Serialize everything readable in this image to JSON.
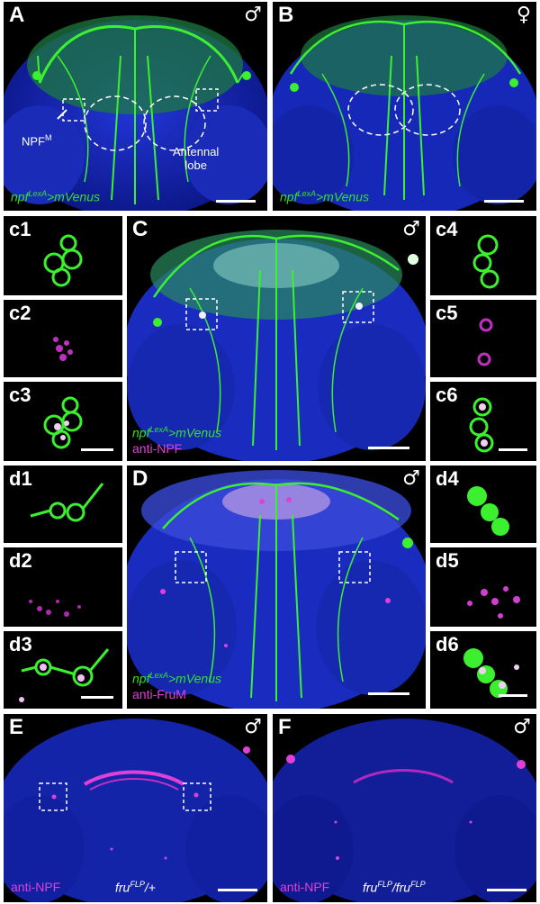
{
  "colors": {
    "green": "#33e02a",
    "magenta": "#e040d8",
    "blue": "#1c2ec4",
    "white": "#ffffff",
    "black": "#000000"
  },
  "panels": {
    "A": {
      "label": "A",
      "sex": "♂",
      "genotype_base": "npf",
      "genotype_sup": "LexA",
      "genotype_rest": ">mVenus",
      "annot_cell": "NPF",
      "annot_cell_sup": "M",
      "annot_lobe_1": "Antennal",
      "annot_lobe_2": "lobe"
    },
    "B": {
      "label": "B",
      "sex": "♀",
      "genotype_base": "npf",
      "genotype_sup": "LexA",
      "genotype_rest": ">mVenus"
    },
    "C": {
      "label": "C",
      "sex": "♂",
      "genotype_base": "npf",
      "genotype_sup": "LexA",
      "genotype_rest": ">mVenus",
      "stain": "anti-NPF"
    },
    "D": {
      "label": "D",
      "sex": "♂",
      "genotype_base": "npf",
      "genotype_sup": "LexA",
      "genotype_rest": ">mVenus",
      "stain": "anti-FruM"
    },
    "E": {
      "label": "E",
      "sex": "♂",
      "stain": "anti-NPF",
      "geno_base": "fru",
      "geno_sup": "FLP",
      "geno_rest": "/+"
    },
    "F": {
      "label": "F",
      "sex": "♂",
      "stain": "anti-NPF",
      "geno_base1": "fru",
      "geno_sup1": "FLP",
      "geno_mid": "/",
      "geno_base2": "fru",
      "geno_sup2": "FLP"
    }
  },
  "insets": {
    "c1": "c1",
    "c2": "c2",
    "c3": "c3",
    "c4": "c4",
    "c5": "c5",
    "c6": "c6",
    "d1": "d1",
    "d2": "d2",
    "d3": "d3",
    "d4": "d4",
    "d5": "d5",
    "d6": "d6"
  }
}
